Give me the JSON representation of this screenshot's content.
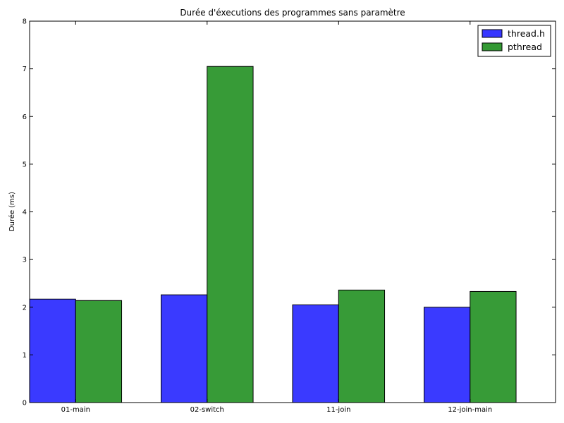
{
  "chart_data": {
    "type": "bar",
    "title": "Durée d'éxecutions des programmes sans paramètre",
    "xlabel": "",
    "ylabel": "Durée (ms)",
    "categories": [
      "01-main",
      "02-switch",
      "11-join",
      "12-join-main"
    ],
    "series": [
      {
        "name": "thread.h",
        "color": "#3636ff",
        "values": [
          2.17,
          2.26,
          2.05,
          2.0
        ]
      },
      {
        "name": "pthread",
        "color": "#339933",
        "values": [
          2.14,
          7.05,
          2.36,
          2.33
        ]
      }
    ],
    "ylim": [
      0,
      8
    ],
    "yticks": [
      "0",
      "1",
      "2",
      "3",
      "4",
      "5",
      "6",
      "7",
      "8"
    ],
    "grid": false,
    "legend_position": "top-right"
  }
}
